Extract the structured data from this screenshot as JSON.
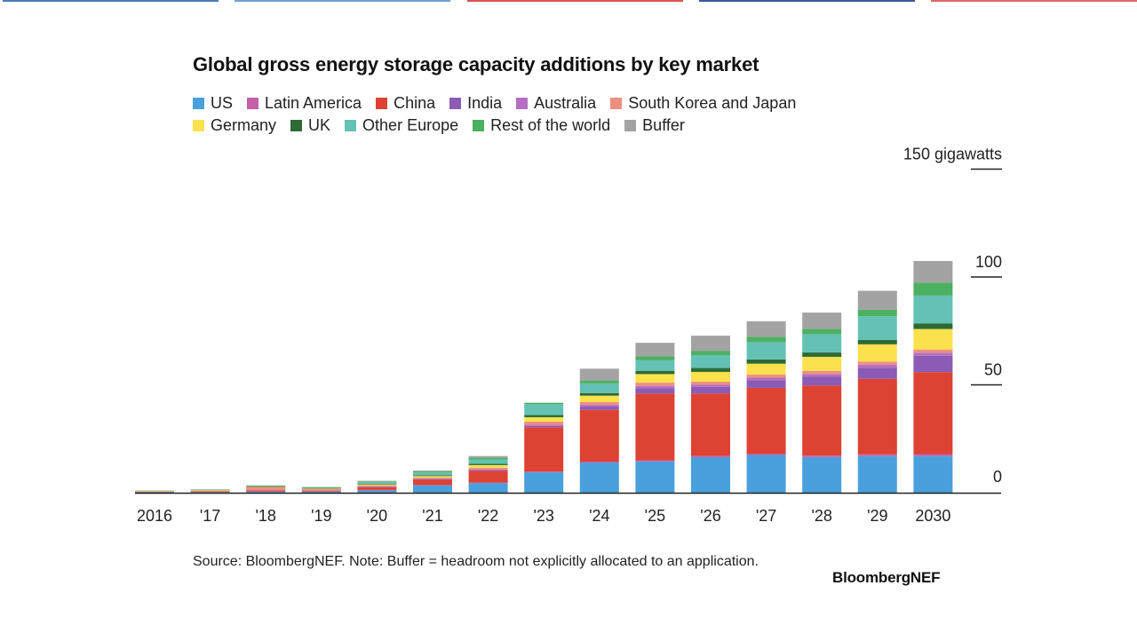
{
  "colors": {
    "US": "#4aa0dc",
    "Latin America": "#c45fa8",
    "China": "#dd4233",
    "India": "#8b5bb5",
    "Australia": "#b56fc2",
    "South Korea and Japan": "#ec8f80",
    "Germany": "#fbe14c",
    "UK": "#2d6a35",
    "Other Europe": "#63c2b3",
    "Rest of the world": "#4cb061",
    "Buffer": "#a3a3a3"
  },
  "chart_data": {
    "type": "bar",
    "stacked": true,
    "title": "Global gross energy storage capacity additions by key market",
    "unit_label": "150 gigawatts",
    "yticks": [
      {
        "value": 0,
        "label": "0"
      },
      {
        "value": 50,
        "label": "50"
      },
      {
        "value": 100,
        "label": "100"
      },
      {
        "value": 150,
        "label": "150 gigawatts"
      }
    ],
    "ylim": [
      0,
      150
    ],
    "categories": [
      "2016",
      "'17",
      "'18",
      "'19",
      "'20",
      "'21",
      "'22",
      "'23",
      "'24",
      "'25",
      "'26",
      "'27",
      "'28",
      "'29",
      "2030"
    ],
    "series": [
      {
        "name": "US",
        "values": [
          0.3,
          0.3,
          0.5,
          0.5,
          1.2,
          3.5,
          4.5,
          9.5,
          14.0,
          14.5,
          16.5,
          17.5,
          16.5,
          17.0,
          17.0
        ]
      },
      {
        "name": "Latin America",
        "values": [
          0,
          0,
          0,
          0,
          0.1,
          0.1,
          0.2,
          0.3,
          0.4,
          0.5,
          0.5,
          0.6,
          0.7,
          0.8,
          0.9
        ]
      },
      {
        "name": "China",
        "values": [
          0.2,
          0.3,
          0.6,
          0.4,
          1.3,
          2.5,
          5.5,
          20.5,
          24.0,
          31.0,
          29.0,
          30.5,
          32.5,
          35.0,
          38.0
        ]
      },
      {
        "name": "India",
        "values": [
          0,
          0,
          0,
          0,
          0.1,
          0.1,
          0.3,
          0.6,
          1.5,
          2.5,
          3.0,
          3.5,
          4.0,
          5.0,
          7.5
        ]
      },
      {
        "name": "Australia",
        "values": [
          0,
          0,
          0.1,
          0.1,
          0.1,
          0.2,
          0.3,
          0.6,
          0.8,
          1.0,
          1.0,
          1.2,
          1.3,
          1.5,
          1.5
        ]
      },
      {
        "name": "South Korea and Japan",
        "values": [
          0.3,
          0.4,
          1.5,
          0.8,
          0.6,
          0.6,
          0.8,
          1.5,
          1.3,
          1.5,
          1.5,
          1.5,
          1.5,
          1.5,
          1.5
        ]
      },
      {
        "name": "Germany",
        "values": [
          0.1,
          0.2,
          0.2,
          0.3,
          0.5,
          0.7,
          1.2,
          2.0,
          3.0,
          4.0,
          4.5,
          5.0,
          6.5,
          8.0,
          9.5
        ]
      },
      {
        "name": "UK",
        "values": [
          0,
          0,
          0.1,
          0.1,
          0.2,
          0.4,
          0.6,
          1.0,
          1.2,
          1.5,
          1.8,
          2.0,
          2.0,
          2.0,
          2.5
        ]
      },
      {
        "name": "Other Europe",
        "values": [
          0.1,
          0.2,
          0.3,
          0.3,
          0.8,
          1.2,
          2.0,
          5.0,
          4.5,
          5.0,
          6.0,
          8.0,
          8.5,
          11.0,
          13.0
        ]
      },
      {
        "name": "Rest of the world",
        "values": [
          0,
          0.1,
          0.1,
          0.1,
          0.3,
          0.5,
          0.8,
          0.7,
          1.3,
          1.7,
          2.0,
          2.5,
          2.5,
          3.0,
          6.0
        ]
      },
      {
        "name": "Buffer",
        "values": [
          0,
          0,
          0,
          0,
          0.3,
          0.5,
          0.8,
          0,
          5.5,
          6.3,
          7.0,
          7.2,
          7.5,
          8.8,
          10.0
        ]
      }
    ]
  },
  "legend_rows": [
    [
      "US",
      "Latin America",
      "China",
      "India",
      "Australia",
      "South Korea and Japan"
    ],
    [
      "Germany",
      "UK",
      "Other Europe",
      "Rest of the world",
      "Buffer"
    ]
  ],
  "footer": {
    "source": "Source: BloombergNEF. Note: Buffer = headroom not explicitly allocated to an application.",
    "brand": "BloombergNEF"
  }
}
